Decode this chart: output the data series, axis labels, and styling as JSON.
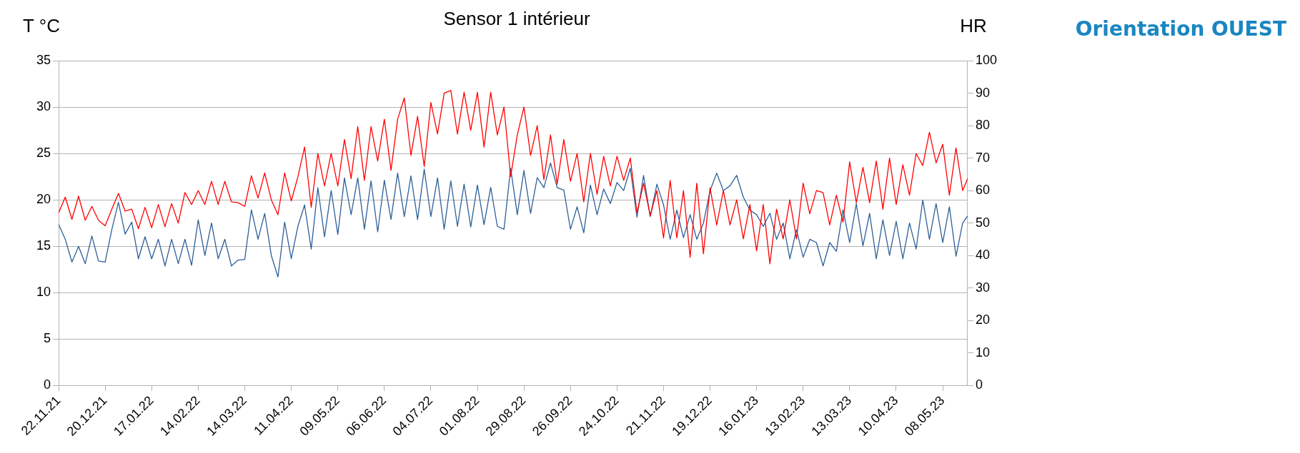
{
  "chart_data": {
    "type": "line",
    "title": "Sensor 1 intérieur",
    "ylabel": "T °C",
    "y2label": "HR",
    "annotations": [
      "Orientation OUEST"
    ],
    "x": [
      "2021-11-22",
      "2021-11-26",
      "2021-11-30",
      "2021-12-04",
      "2021-12-08",
      "2021-12-12",
      "2021-12-16",
      "2021-12-20",
      "2021-12-24",
      "2021-12-28",
      "2022-01-01",
      "2022-01-05",
      "2022-01-09",
      "2022-01-13",
      "2022-01-17",
      "2022-01-21",
      "2022-01-25",
      "2022-01-29",
      "2022-02-02",
      "2022-02-06",
      "2022-02-10",
      "2022-02-14",
      "2022-02-18",
      "2022-02-22",
      "2022-02-26",
      "2022-03-02",
      "2022-03-06",
      "2022-03-10",
      "2022-03-14",
      "2022-03-18",
      "2022-03-22",
      "2022-03-26",
      "2022-03-30",
      "2022-04-03",
      "2022-04-07",
      "2022-04-11",
      "2022-04-15",
      "2022-04-19",
      "2022-04-23",
      "2022-04-27",
      "2022-05-01",
      "2022-05-05",
      "2022-05-09",
      "2022-05-13",
      "2022-05-17",
      "2022-05-21",
      "2022-05-25",
      "2022-05-29",
      "2022-06-02",
      "2022-06-06",
      "2022-06-10",
      "2022-06-14",
      "2022-06-18",
      "2022-06-22",
      "2022-06-26",
      "2022-06-30",
      "2022-07-04",
      "2022-07-08",
      "2022-07-12",
      "2022-07-16",
      "2022-07-20",
      "2022-07-24",
      "2022-07-28",
      "2022-08-01",
      "2022-08-05",
      "2022-08-09",
      "2022-08-13",
      "2022-08-17",
      "2022-08-21",
      "2022-08-25",
      "2022-08-29",
      "2022-09-02",
      "2022-09-06",
      "2022-09-10",
      "2022-09-14",
      "2022-09-18",
      "2022-09-22",
      "2022-09-26",
      "2022-09-30",
      "2022-10-04",
      "2022-10-08",
      "2022-10-12",
      "2022-10-16",
      "2022-10-20",
      "2022-10-24",
      "2022-10-28",
      "2022-11-01",
      "2022-11-05",
      "2022-11-09",
      "2022-11-13",
      "2022-11-17",
      "2022-11-21",
      "2022-11-25",
      "2022-11-29",
      "2022-12-03",
      "2022-12-07",
      "2022-12-11",
      "2022-12-15",
      "2022-12-19",
      "2022-12-23",
      "2022-12-27",
      "2022-12-31",
      "2023-01-04",
      "2023-01-08",
      "2023-01-12",
      "2023-01-16",
      "2023-01-20",
      "2023-01-24",
      "2023-01-28",
      "2023-02-01",
      "2023-02-05",
      "2023-02-09",
      "2023-02-13",
      "2023-02-17",
      "2023-02-21",
      "2023-02-25",
      "2023-03-01",
      "2023-03-05",
      "2023-03-09",
      "2023-03-13",
      "2023-03-17",
      "2023-03-21",
      "2023-03-25",
      "2023-03-29",
      "2023-04-02",
      "2023-04-06",
      "2023-04-10",
      "2023-04-14",
      "2023-04-18",
      "2023-04-22",
      "2023-04-26",
      "2023-04-30",
      "2023-05-04",
      "2023-05-08",
      "2023-05-12",
      "2023-05-16",
      "2023-05-20",
      "2023-05-23"
    ],
    "series": [
      {
        "color": "#ff0000",
        "values": [
          18.6,
          20.3,
          17.9,
          20.4,
          17.8,
          19.3,
          17.8,
          17.2,
          19.0,
          20.7,
          18.8,
          19.0,
          16.9,
          19.2,
          17.0,
          19.5,
          17.1,
          19.6,
          17.5,
          20.8,
          19.5,
          21.0,
          19.5,
          22.0,
          19.5,
          22.0,
          19.8,
          19.7,
          19.3,
          22.6,
          20.2,
          22.9,
          20.0,
          18.4,
          22.9,
          19.9,
          22.5,
          25.7,
          19.2,
          25.0,
          21.5,
          25.0,
          21.5,
          26.5,
          22.3,
          27.9,
          22.1,
          27.9,
          24.2,
          28.7,
          23.2,
          28.7,
          31.0,
          24.8,
          29.0,
          23.6,
          30.5,
          27.1,
          31.5,
          31.8,
          27.1,
          31.6,
          27.5,
          31.6,
          25.7,
          31.6,
          27.0,
          30.0,
          22.5,
          27.0,
          30.0,
          24.8,
          28.0,
          22.2,
          27.0,
          21.7,
          26.5,
          22.0,
          25.0,
          19.8,
          25.0,
          20.6,
          24.7,
          21.5,
          24.7,
          22.1,
          24.5,
          18.6,
          21.8,
          18.3,
          21.0,
          15.9,
          22.1,
          15.9,
          21.0,
          13.8,
          21.8,
          14.2,
          21.3,
          17.3,
          21.0,
          17.3,
          20.0,
          15.8,
          19.5,
          14.5,
          19.5,
          13.1,
          19.0,
          15.8,
          20.0,
          15.8,
          21.8,
          18.5,
          21.0,
          20.8,
          17.3,
          20.5,
          17.6,
          24.1,
          19.7,
          23.5,
          19.7,
          24.2,
          19.0,
          24.5,
          19.5,
          23.8,
          20.5,
          25.0,
          23.7,
          27.3,
          24.0,
          26.0,
          20.5,
          25.6,
          21.0,
          22.3
        ]
      },
      {
        "color": "#2e5f99",
        "axis": "y2",
        "values": [
          49.6,
          45.0,
          38.0,
          42.8,
          37.5,
          46.0,
          38.3,
          38.0,
          48.0,
          56.4,
          46.6,
          50.3,
          39.0,
          45.8,
          39.0,
          45.0,
          36.8,
          45.0,
          37.5,
          45.0,
          37.0,
          51.0,
          40.0,
          50.0,
          39.0,
          45.0,
          36.8,
          38.6,
          38.8,
          54.1,
          45.0,
          53.0,
          40.0,
          33.4,
          50.3,
          39.0,
          49.0,
          55.6,
          42.0,
          60.9,
          45.8,
          60.0,
          46.5,
          63.9,
          52.6,
          63.9,
          48.1,
          63.0,
          47.3,
          63.2,
          51.1,
          65.4,
          52.0,
          64.5,
          51.1,
          66.6,
          52.0,
          63.9,
          48.1,
          63.0,
          49.0,
          62.0,
          48.8,
          61.7,
          49.5,
          61.0,
          49.0,
          48.1,
          66.9,
          52.6,
          66.2,
          53.0,
          64.0,
          60.9,
          68.5,
          60.9,
          60.2,
          48.1,
          55.0,
          47.0,
          61.7,
          52.6,
          60.5,
          56.0,
          62.5,
          60.0,
          66.9,
          51.8,
          64.7,
          52.0,
          62.0,
          55.6,
          45.0,
          54.0,
          45.5,
          52.6,
          45.0,
          50.0,
          60.0,
          65.4,
          60.0,
          61.5,
          64.7,
          58.0,
          54.0,
          52.6,
          49.0,
          53.0,
          45.0,
          50.0,
          39.0,
          48.0,
          39.5,
          45.0,
          44.0,
          36.8,
          44.0,
          41.3,
          54.1,
          44.0,
          56.0,
          43.0,
          53.0,
          39.0,
          51.0,
          40.0,
          50.5,
          39.0,
          50.0,
          42.0,
          57.1,
          45.0,
          56.0,
          44.0,
          55.0,
          39.8,
          50.0,
          52.2
        ]
      }
    ],
    "xlim": [
      "2021-11-22",
      "2023-05-23"
    ],
    "xticks": [
      {
        "value": "2021-11-22",
        "label": "22.11.21"
      },
      {
        "value": "2021-12-20",
        "label": "20.12.21"
      },
      {
        "value": "2022-01-17",
        "label": "17.01.22"
      },
      {
        "value": "2022-02-14",
        "label": "14.02.22"
      },
      {
        "value": "2022-03-14",
        "label": "14.03.22"
      },
      {
        "value": "2022-04-11",
        "label": "11.04.22"
      },
      {
        "value": "2022-05-09",
        "label": "09.05.22"
      },
      {
        "value": "2022-06-06",
        "label": "06.06.22"
      },
      {
        "value": "2022-07-04",
        "label": "04.07.22"
      },
      {
        "value": "2022-08-01",
        "label": "01.08.22"
      },
      {
        "value": "2022-08-29",
        "label": "29.08.22"
      },
      {
        "value": "2022-09-26",
        "label": "26.09.22"
      },
      {
        "value": "2022-10-24",
        "label": "24.10.22"
      },
      {
        "value": "2022-11-21",
        "label": "21.11.22"
      },
      {
        "value": "2022-12-19",
        "label": "19.12.22"
      },
      {
        "value": "2023-01-16",
        "label": "16.01.23"
      },
      {
        "value": "2023-02-13",
        "label": "13.02.23"
      },
      {
        "value": "2023-03-13",
        "label": "13.03.23"
      },
      {
        "value": "2023-04-10",
        "label": "10.04.23"
      },
      {
        "value": "2023-05-08",
        "label": "08.05.23"
      }
    ],
    "ylim": [
      0,
      35
    ],
    "yticks": [
      0,
      5,
      10,
      15,
      20,
      25,
      30,
      35
    ],
    "y2lim": [
      0,
      100
    ],
    "y2ticks": [
      0,
      10,
      20,
      30,
      40,
      50,
      60,
      70,
      80,
      90,
      100
    ],
    "grid": "y",
    "legend": false,
    "marker": "none",
    "line_style": "solid"
  }
}
